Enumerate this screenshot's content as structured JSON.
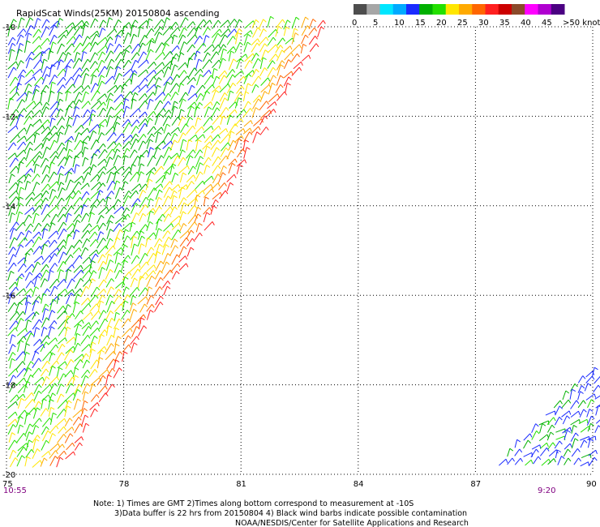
{
  "title": "RapidScat Winds(25KM) 20150804 ascending",
  "legend": {
    "labels": [
      "0",
      "5",
      "10",
      "15",
      "20",
      "25",
      "30",
      "35",
      "40",
      "45",
      ">50 knots"
    ],
    "colors": [
      "#4d4d4d",
      "#a6a6a6",
      "#00e6ff",
      "#00aaff",
      "#1a2bff",
      "#00b000",
      "#23e000",
      "#ffe600",
      "#ffaa00",
      "#ff6600",
      "#ff2020",
      "#cc0000",
      "#8b4a2b",
      "#ff00ff",
      "#b000d0",
      "#4b0082"
    ]
  },
  "map": {
    "lon_min": 75,
    "lon_max": 90,
    "lat_min": -20,
    "lat_max": -10,
    "lon_ticks": [
      75,
      78,
      81,
      84,
      87,
      90
    ],
    "lon_labels": [
      "75",
      "78",
      "81",
      "84",
      "87",
      "90"
    ],
    "lat_ticks": [
      -10,
      -12,
      -14,
      -16,
      -18,
      -20
    ],
    "lat_labels": [
      "-10",
      "-12",
      "-14",
      "-16",
      "-18",
      "-20"
    ],
    "time_left": "10:55",
    "time_right": "9:20",
    "speed_colors": {
      "low": "#1a2bff",
      "mid": "#00b000",
      "mid2": "#23e000",
      "high": "#ffe600",
      "high2": "#ffaa00",
      "strong": "#ff6600",
      "edge": "#ff2020"
    }
  },
  "notes": {
    "line1": "Note: 1) Times are GMT 2)Times along bottom correspond to measurement at -10S",
    "line2": "3)Data buffer is 22 hrs from 20150804 4) Black wind barbs indicate possible contamination",
    "line3": "NOAA/NESDIS/Center for Satellite Applications and Research"
  }
}
